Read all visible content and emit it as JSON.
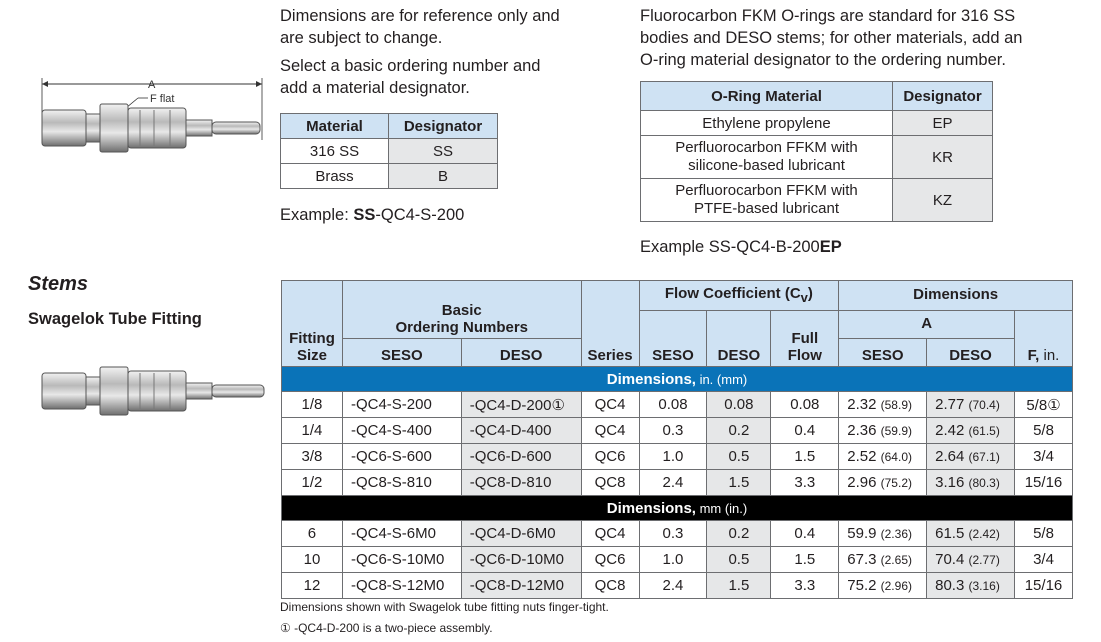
{
  "intro": {
    "line1": "Dimensions are for reference only and",
    "line2": "are subject to change.",
    "line3": "Select a basic ordering number and",
    "line4": "add a material designator."
  },
  "oring_note": {
    "line1": "Fluorocarbon FKM O-rings are standard for 316 SS",
    "line2": "bodies and DESO stems; for other materials, add an",
    "line3": "O-ring material designator to the ordering number."
  },
  "material_table": {
    "headers": [
      "Material",
      "Designator"
    ],
    "rows": [
      [
        "316 SS",
        "SS"
      ],
      [
        "Brass",
        "B"
      ]
    ]
  },
  "material_example": {
    "label": "Example: ",
    "bold": "SS",
    "rest": "-QC4-S-200"
  },
  "oring_table": {
    "headers": [
      "O-Ring Material",
      "Designator"
    ],
    "rows": [
      {
        "l1": "Ethylene propylene",
        "l2": "",
        "code": "EP"
      },
      {
        "l1": "Perfluorocarbon FFKM with",
        "l2": "silicone-based lubricant",
        "code": "KR"
      },
      {
        "l1": "Perfluorocarbon FFKM with",
        "l2": "PTFE-based lubricant",
        "code": "KZ"
      }
    ]
  },
  "oring_example": {
    "label": "Example SS-QC4-B-200",
    "bold": "EP"
  },
  "drawing": {
    "dim_a": "A",
    "dim_f": "F flat"
  },
  "section": {
    "title": "Stems",
    "subtitle": "Swagelok Tube Fitting"
  },
  "table": {
    "h_fitting_1": "Fitting",
    "h_fitting_2": "Size",
    "h_basic_1": "Basic",
    "h_basic_2": "Ordering Numbers",
    "h_seso": "SESO",
    "h_deso": "DESO",
    "h_series": "Series",
    "h_flow": "Flow Coefficient (C",
    "h_flow_sub": "v",
    "h_flow_end": ")",
    "h_full_1": "Full",
    "h_full_2": "Flow",
    "h_dimensions": "Dimensions",
    "h_a": "A",
    "h_f": "F,",
    "h_f_unit": " in.",
    "band1_bold": "Dimensions,",
    "band1_unit": " in. (mm)",
    "band2_bold": "Dimensions,",
    "band2_unit": " mm (in.)",
    "inch_rows": [
      {
        "size": "1/8",
        "seso": "-QC4-S-200",
        "deso": "-QC4-D-200",
        "deso_note": "①",
        "series": "QC4",
        "cv_seso": "0.08",
        "cv_deso": "0.08",
        "full": "0.08",
        "a_seso": "2.32",
        "a_seso_alt": "(58.9)",
        "a_deso": "2.77",
        "a_deso_alt": "(70.4)",
        "f": "5/8",
        "f_note": "①"
      },
      {
        "size": "1/4",
        "seso": "-QC4-S-400",
        "deso": "-QC4-D-400",
        "deso_note": "",
        "series": "QC4",
        "cv_seso": "0.3",
        "cv_deso": "0.2",
        "full": "0.4",
        "a_seso": "2.36",
        "a_seso_alt": "(59.9)",
        "a_deso": "2.42",
        "a_deso_alt": "(61.5)",
        "f": "5/8",
        "f_note": ""
      },
      {
        "size": "3/8",
        "seso": "-QC6-S-600",
        "deso": "-QC6-D-600",
        "deso_note": "",
        "series": "QC6",
        "cv_seso": "1.0",
        "cv_deso": "0.5",
        "full": "1.5",
        "a_seso": "2.52",
        "a_seso_alt": "(64.0)",
        "a_deso": "2.64",
        "a_deso_alt": "(67.1)",
        "f": "3/4",
        "f_note": ""
      },
      {
        "size": "1/2",
        "seso": "-QC8-S-810",
        "deso": "-QC8-D-810",
        "deso_note": "",
        "series": "QC8",
        "cv_seso": "2.4",
        "cv_deso": "1.5",
        "full": "3.3",
        "a_seso": "2.96",
        "a_seso_alt": "(75.2)",
        "a_deso": "3.16",
        "a_deso_alt": "(80.3)",
        "f": "15/16",
        "f_note": ""
      }
    ],
    "mm_rows": [
      {
        "size": "6",
        "seso": "-QC4-S-6M0",
        "deso": "-QC4-D-6M0",
        "deso_note": "",
        "series": "QC4",
        "cv_seso": "0.3",
        "cv_deso": "0.2",
        "full": "0.4",
        "a_seso": "59.9",
        "a_seso_alt": "(2.36)",
        "a_deso": "61.5",
        "a_deso_alt": "(2.42)",
        "f": "5/8",
        "f_note": ""
      },
      {
        "size": "10",
        "seso": "-QC6-S-10M0",
        "deso": "-QC6-D-10M0",
        "deso_note": "",
        "series": "QC6",
        "cv_seso": "1.0",
        "cv_deso": "0.5",
        "full": "1.5",
        "a_seso": "67.3",
        "a_seso_alt": "(2.65)",
        "a_deso": "70.4",
        "a_deso_alt": "(2.77)",
        "f": "3/4",
        "f_note": ""
      },
      {
        "size": "12",
        "seso": "-QC8-S-12M0",
        "deso": "-QC8-D-12M0",
        "deso_note": "",
        "series": "QC8",
        "cv_seso": "2.4",
        "cv_deso": "1.5",
        "full": "3.3",
        "a_seso": "75.2",
        "a_seso_alt": "(2.96)",
        "a_deso": "80.3",
        "a_deso_alt": "(3.16)",
        "f": "15/16",
        "f_note": ""
      }
    ]
  },
  "footnotes": {
    "line1": "Dimensions shown with Swagelok tube fitting nuts finger-tight.",
    "line2": "① -QC4-D-200 is a two-piece assembly."
  },
  "colors": {
    "header_fill": "#cfe2f3",
    "band_blue": "#0a73b8",
    "band_black": "#000000",
    "cell_gray": "#e6e7e8"
  }
}
